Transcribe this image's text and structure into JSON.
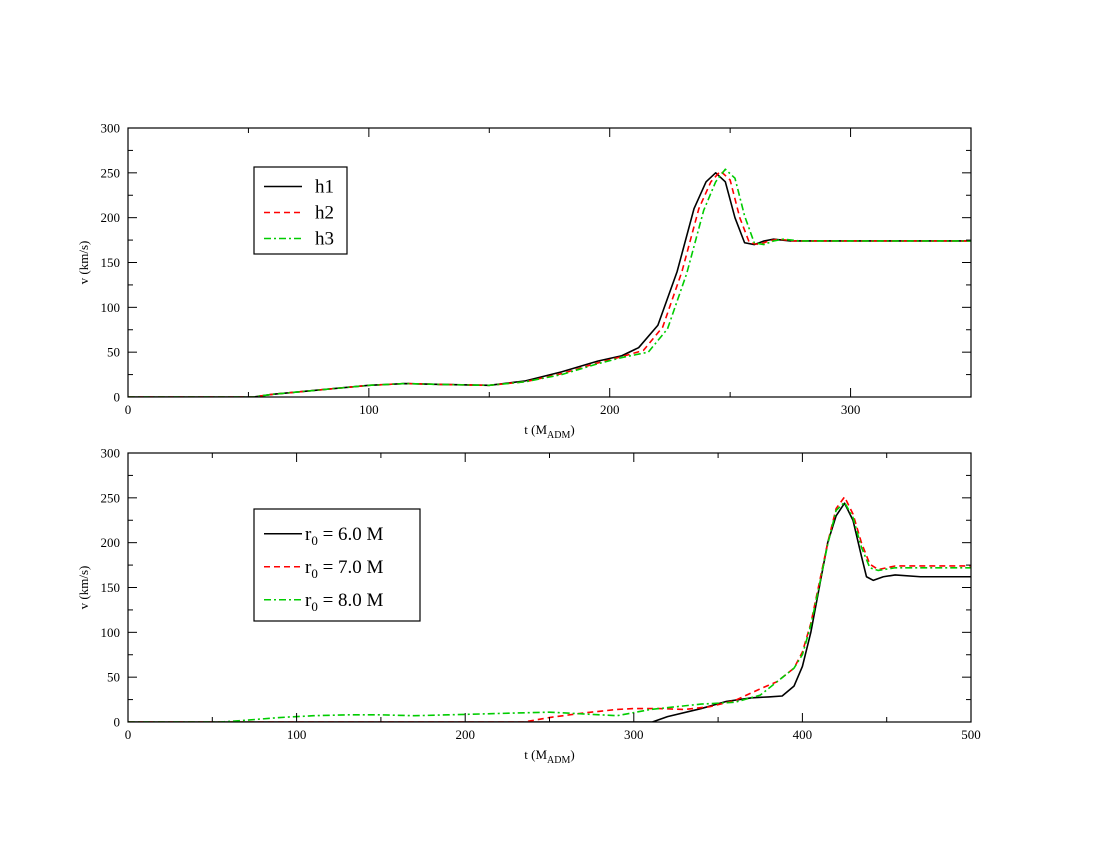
{
  "chart_data": [
    {
      "type": "line",
      "xlabel": "t (M",
      "xlabel_sub": "ADM",
      "xlabel_close": ")",
      "ylabel": "v (km/s)",
      "xlim": [
        0,
        350
      ],
      "ylim": [
        0,
        300
      ],
      "xticks": [
        0,
        100,
        200,
        300
      ],
      "yticks": [
        0,
        50,
        100,
        150,
        200,
        250,
        300
      ],
      "legend_position": "top-left",
      "series": [
        {
          "name": "h1",
          "name_sub": "",
          "name_rest": "",
          "color": "#000000",
          "dash": "solid",
          "x": [
            0,
            52,
            60,
            80,
            100,
            115,
            130,
            150,
            165,
            180,
            195,
            205,
            212,
            220,
            228,
            235,
            240,
            244,
            248,
            252,
            256,
            260,
            264,
            268,
            275,
            290,
            320,
            350
          ],
          "y": [
            0,
            0,
            3,
            8,
            13,
            15,
            14,
            13,
            18,
            28,
            40,
            46,
            55,
            80,
            140,
            210,
            240,
            250,
            240,
            200,
            172,
            170,
            174,
            176,
            174,
            174,
            174,
            174
          ]
        },
        {
          "name": "h2",
          "name_sub": "",
          "name_rest": "",
          "color": "#ff0000",
          "dash": "dashed",
          "x": [
            0,
            52,
            60,
            80,
            100,
            115,
            130,
            150,
            165,
            180,
            195,
            205,
            214,
            222,
            230,
            237,
            242,
            246,
            250,
            254,
            258,
            262,
            266,
            270,
            277,
            290,
            320,
            350
          ],
          "y": [
            0,
            0,
            3,
            8,
            13,
            15,
            14,
            13,
            17,
            26,
            38,
            45,
            52,
            78,
            140,
            210,
            240,
            252,
            242,
            200,
            172,
            170,
            174,
            176,
            174,
            174,
            174,
            174
          ]
        },
        {
          "name": "h3",
          "name_sub": "",
          "name_rest": "",
          "color": "#00cc00",
          "dash": "dashdot",
          "x": [
            0,
            52,
            60,
            80,
            100,
            115,
            130,
            150,
            165,
            180,
            195,
            205,
            216,
            224,
            232,
            239,
            244,
            248,
            252,
            256,
            260,
            264,
            268,
            272,
            279,
            290,
            320,
            350
          ],
          "y": [
            0,
            0,
            3,
            8,
            13,
            15,
            14,
            13,
            17,
            25,
            37,
            44,
            50,
            76,
            138,
            208,
            240,
            254,
            244,
            202,
            172,
            170,
            174,
            176,
            174,
            174,
            174,
            174
          ]
        }
      ]
    },
    {
      "type": "line",
      "xlabel": "t (M",
      "xlabel_sub": "ADM",
      "xlabel_close": ")",
      "ylabel": "v (km/s)",
      "xlim": [
        0,
        500
      ],
      "ylim": [
        0,
        300
      ],
      "xticks": [
        0,
        100,
        200,
        300,
        400,
        500
      ],
      "yticks": [
        0,
        50,
        100,
        150,
        200,
        250,
        300
      ],
      "legend_position": "top-left",
      "series": [
        {
          "name": "r",
          "name_sub": "0",
          "name_rest": " = 6.0 M",
          "color": "#000000",
          "dash": "solid",
          "x": [
            0,
            311,
            320,
            340,
            355,
            370,
            380,
            388,
            395,
            400,
            405,
            410,
            415,
            420,
            425,
            430,
            435,
            438,
            442,
            448,
            455,
            470,
            500
          ],
          "y": [
            0,
            0,
            6,
            15,
            23,
            27,
            28,
            29,
            40,
            62,
            100,
            150,
            200,
            230,
            244,
            225,
            185,
            162,
            158,
            162,
            164,
            162,
            162
          ]
        },
        {
          "name": "r",
          "name_sub": "0",
          "name_rest": " = 7.0 M",
          "color": "#ff0000",
          "dash": "dashed",
          "x": [
            0,
            235,
            250,
            270,
            290,
            300,
            315,
            330,
            345,
            360,
            375,
            385,
            395,
            400,
            405,
            410,
            415,
            420,
            425,
            430,
            435,
            440,
            445,
            455,
            470,
            500
          ],
          "y": [
            0,
            0,
            5,
            10,
            14,
            15,
            15,
            14,
            17,
            24,
            37,
            45,
            60,
            78,
            110,
            155,
            200,
            238,
            251,
            232,
            200,
            176,
            170,
            174,
            174,
            174
          ]
        },
        {
          "name": "r",
          "name_sub": "0",
          "name_rest": " = 8.0 M",
          "color": "#00cc00",
          "dash": "dashdot",
          "x": [
            0,
            55,
            70,
            90,
            110,
            130,
            150,
            170,
            190,
            210,
            230,
            250,
            270,
            290,
            310,
            340,
            360,
            375,
            385,
            395,
            400,
            405,
            410,
            415,
            420,
            425,
            430,
            435,
            440,
            445,
            455,
            470,
            500
          ],
          "y": [
            0,
            0,
            2,
            5,
            7,
            8,
            8,
            7,
            8,
            9,
            10,
            11,
            9,
            7,
            14,
            20,
            22,
            30,
            45,
            60,
            75,
            108,
            152,
            198,
            236,
            245,
            228,
            195,
            172,
            169,
            172,
            172,
            172
          ]
        }
      ]
    }
  ]
}
